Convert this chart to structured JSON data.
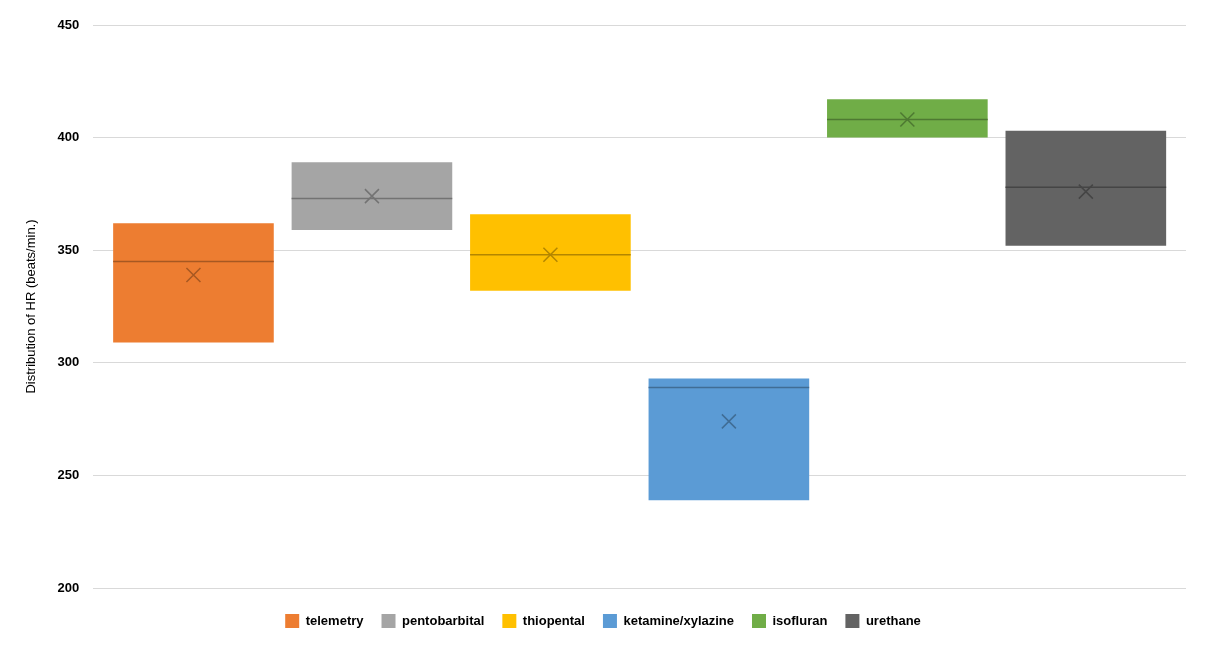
{
  "chart_data": {
    "type": "box",
    "ylabel": "Distribution of HR (beats/min.)",
    "categories": [
      null
    ],
    "series": [
      {
        "name": "telemetry",
        "color": "#ed7d31",
        "boxes": [
          {
            "low": 309,
            "q1": 309,
            "median": 345,
            "q3": 362,
            "high": 362,
            "mean": 339
          }
        ]
      },
      {
        "name": "pentobarbital",
        "color": "#a5a5a5",
        "boxes": [
          {
            "low": 359,
            "q1": 359,
            "median": 373,
            "q3": 389,
            "high": 389,
            "mean": 374
          }
        ]
      },
      {
        "name": "thiopental",
        "color": "#ffc000",
        "boxes": [
          {
            "low": 332,
            "q1": 332,
            "median": 348,
            "q3": 366,
            "high": 366,
            "mean": 348
          }
        ]
      },
      {
        "name": "ketamine/xylazine",
        "color": "#5b9bd5",
        "boxes": [
          {
            "low": 239,
            "q1": 239,
            "median": 289,
            "q3": 293,
            "high": 293,
            "mean": 274
          }
        ]
      },
      {
        "name": "isofluran",
        "color": "#70ad47",
        "boxes": [
          {
            "low": 400,
            "q1": 400,
            "median": 408,
            "q3": 417,
            "high": 417,
            "mean": 408
          }
        ]
      },
      {
        "name": "urethane",
        "color": "#636363",
        "boxes": [
          {
            "low": 352,
            "q1": 352,
            "median": 378,
            "q3": 403,
            "high": 403,
            "mean": 376
          }
        ]
      }
    ],
    "ylim": [
      200,
      450
    ],
    "yticks": [
      200,
      250,
      300,
      350,
      400,
      450
    ],
    "grid": "y",
    "legend": "bottom",
    "tick_labels": "y"
  }
}
